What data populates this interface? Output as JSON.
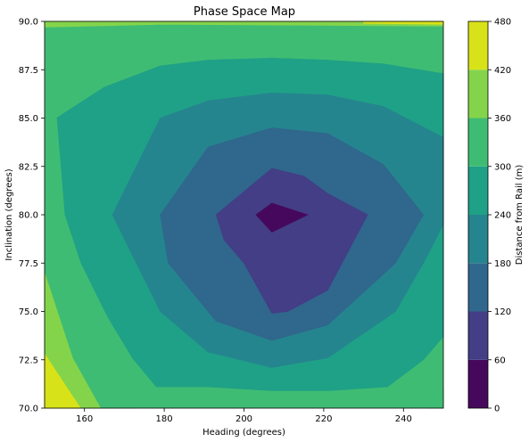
{
  "chart_data": {
    "type": "filled-contour",
    "title": "Phase Space Map",
    "xlabel": "Heading (degrees)",
    "ylabel": "Inclination (degrees)",
    "xlim": [
      150,
      250
    ],
    "ylim": [
      70,
      90
    ],
    "xticks": [
      "160",
      "180",
      "200",
      "220",
      "240"
    ],
    "xtick_values": [
      160,
      180,
      200,
      220,
      240
    ],
    "yticks": [
      "70.0",
      "72.5",
      "75.0",
      "77.5",
      "80.0",
      "82.5",
      "85.0",
      "87.5",
      "90.0"
    ],
    "ytick_values": [
      70,
      72.5,
      75,
      77.5,
      80,
      82.5,
      85,
      87.5,
      90
    ],
    "colorbar": {
      "label": "Distance from Rail (m)",
      "levels": [
        0,
        60,
        120,
        180,
        240,
        300,
        360,
        420,
        480
      ],
      "tick_labels": [
        "0",
        "60",
        "120",
        "180",
        "240",
        "300",
        "360",
        "420",
        "480"
      ],
      "colors": [
        "#46085c",
        "#433e85",
        "#30678d",
        "#25858e",
        "#1fa187",
        "#3fbc73",
        "#84d44b",
        "#d8e219"
      ]
    },
    "grid": false,
    "contours": [
      {
        "level_min": 240,
        "level_max": 300,
        "color": "#1fa187",
        "points": [
          [
            153,
            85
          ],
          [
            165,
            86.6
          ],
          [
            179,
            87.7
          ],
          [
            191,
            88
          ],
          [
            207,
            88.1
          ],
          [
            221,
            88
          ],
          [
            235,
            87.8
          ],
          [
            250,
            87.3
          ],
          [
            250,
            73.7
          ],
          [
            245,
            72.5
          ],
          [
            236,
            71.1
          ],
          [
            221,
            70.9
          ],
          [
            207,
            70.9
          ],
          [
            191,
            71.1
          ],
          [
            178,
            71.1
          ],
          [
            172,
            72.6
          ],
          [
            165,
            75
          ],
          [
            159,
            77.5
          ],
          [
            155,
            80
          ],
          [
            154,
            82.5
          ]
        ]
      },
      {
        "level_min": 180,
        "level_max": 240,
        "color": "#25858e",
        "points": [
          [
            167,
            80
          ],
          [
            179,
            85
          ],
          [
            191,
            85.9
          ],
          [
            207,
            86.3
          ],
          [
            221,
            86.2
          ],
          [
            235,
            85.6
          ],
          [
            250,
            84
          ],
          [
            250,
            79.5
          ],
          [
            245,
            77.5
          ],
          [
            238,
            75
          ],
          [
            221,
            72.6
          ],
          [
            207,
            72.1
          ],
          [
            191,
            72.9
          ],
          [
            179,
            75
          ],
          [
            173,
            77.5
          ]
        ]
      },
      {
        "level_min": 120,
        "level_max": 180,
        "color": "#30678d",
        "points": [
          [
            179,
            80
          ],
          [
            191,
            83.5
          ],
          [
            207,
            84.5
          ],
          [
            221,
            84.2
          ],
          [
            235,
            82.6
          ],
          [
            245,
            80
          ],
          [
            238,
            77.5
          ],
          [
            221,
            74.3
          ],
          [
            207,
            73.5
          ],
          [
            193,
            74.5
          ],
          [
            181,
            77.5
          ]
        ]
      },
      {
        "level_min": 60,
        "level_max": 120,
        "color": "#433e85",
        "points": [
          [
            193,
            80
          ],
          [
            207,
            82.4
          ],
          [
            215,
            82
          ],
          [
            221,
            81.1
          ],
          [
            231,
            80
          ],
          [
            221,
            76.1
          ],
          [
            211,
            75
          ],
          [
            207,
            74.9
          ],
          [
            200,
            77.5
          ],
          [
            195,
            78.7
          ]
        ]
      },
      {
        "level_min": 0,
        "level_max": 60,
        "color": "#46085c",
        "points": [
          [
            203,
            80
          ],
          [
            207,
            80.6
          ],
          [
            216,
            80
          ],
          [
            207,
            79.1
          ]
        ]
      },
      {
        "level_min": 300,
        "level_max": 360,
        "color": "#3fbc73",
        "points": [
          [
            150,
            77
          ],
          [
            150,
            70
          ],
          [
            173,
            70
          ],
          [
            171,
            72.6
          ],
          [
            165,
            75
          ],
          [
            159,
            77.5
          ],
          [
            155,
            80
          ],
          [
            153,
            85
          ],
          [
            150,
            85
          ]
        ]
      },
      {
        "level_min": 360,
        "level_max": 420,
        "color": "#84d44b",
        "points": [
          [
            150,
            77
          ],
          [
            157,
            72.6
          ],
          [
            164,
            70
          ],
          [
            150,
            70
          ]
        ]
      },
      {
        "level_min": 420,
        "level_max": 480,
        "color": "#d8e219",
        "points": [
          [
            150,
            72.8
          ],
          [
            159,
            70
          ],
          [
            150,
            70
          ]
        ]
      },
      {
        "level_min": 360,
        "level_max": 420,
        "color": "#84d44b",
        "points": [
          [
            150,
            89.7
          ],
          [
            180,
            89.85
          ],
          [
            250,
            89.75
          ],
          [
            250,
            90
          ],
          [
            150,
            90
          ]
        ]
      },
      {
        "level_min": 420,
        "level_max": 480,
        "color": "#d8e219",
        "points": [
          [
            230,
            89.9
          ],
          [
            250,
            89.85
          ],
          [
            250,
            90
          ],
          [
            230,
            90
          ]
        ]
      },
      {
        "level_min": 300,
        "level_max": 360,
        "color": "#3fbc73",
        "points": [
          [
            244,
            70.5
          ],
          [
            250,
            71
          ],
          [
            250,
            70
          ],
          [
            246,
            70
          ]
        ]
      }
    ]
  }
}
